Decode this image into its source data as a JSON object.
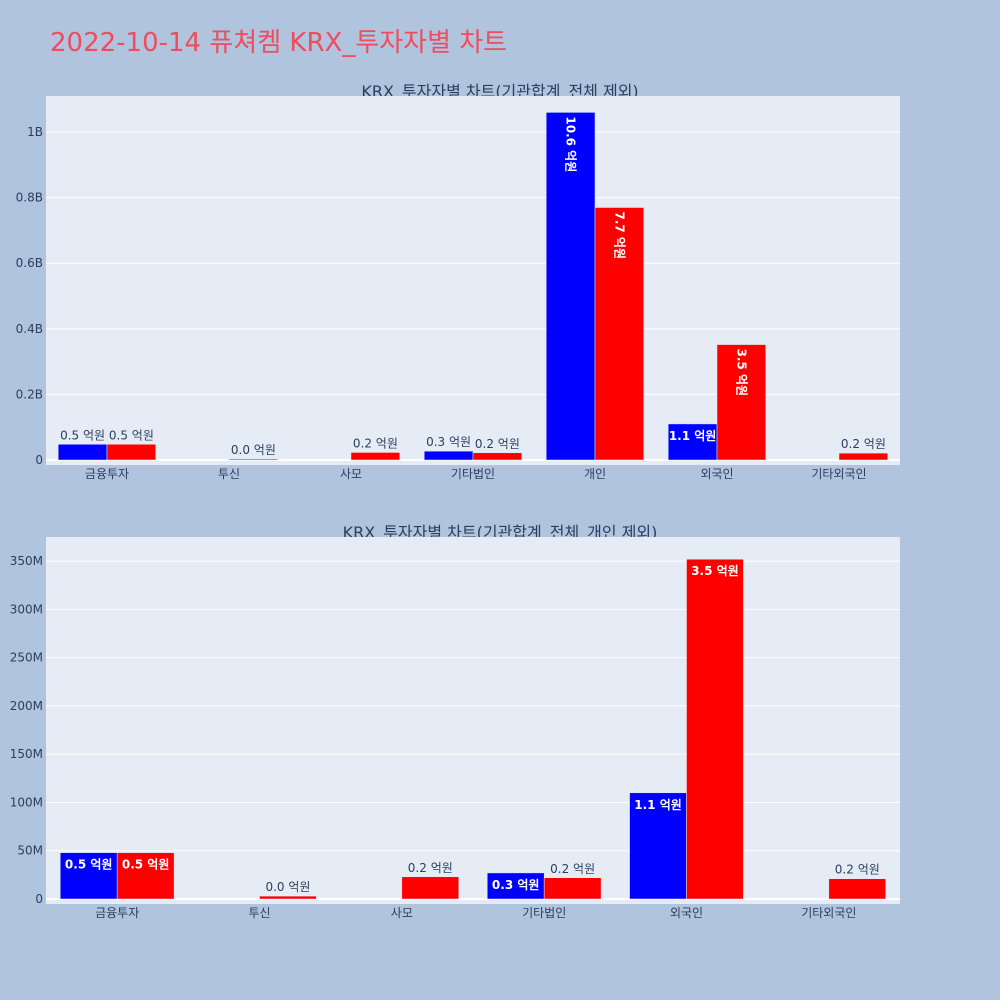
{
  "page": {
    "title": "2022-10-14 퓨쳐켐 KRX_투자자별 차트",
    "title_color": "#ef4c5e",
    "background": "#b0c4de",
    "plot_background": "#e5ecf6"
  },
  "chart_data": [
    {
      "type": "bar",
      "title": "KRX_투자자별 차트(기관합계_전체 제외)",
      "categories": [
        "금융투자",
        "투신",
        "사모",
        "기타법인",
        "개인",
        "외국인",
        "기타외국인"
      ],
      "series": [
        {
          "color": "#0000ff",
          "values": [
            48000000,
            0,
            0,
            27000000,
            1060000000,
            110000000,
            0
          ],
          "labels": [
            "0.5 억원",
            "",
            "",
            "0.3 억원",
            "10.6 억원",
            "1.1 억원",
            ""
          ]
        },
        {
          "color": "#ff0000",
          "values": [
            48000000,
            3000000,
            23000000,
            22000000,
            770000000,
            352000000,
            21000000
          ],
          "labels": [
            "0.5 억원",
            "0.0 억원",
            "0.2 억원",
            "0.2 억원",
            "7.7 억원",
            "3.5 억원",
            "0.2 억원"
          ]
        }
      ],
      "ylim": [
        0,
        1110000000
      ],
      "yticks": [
        0,
        200000000,
        400000000,
        600000000,
        800000000,
        1000000000
      ],
      "ytick_labels": [
        "0",
        "0.2B",
        "0.4B",
        "0.6B",
        "0.8B",
        "1B"
      ],
      "grid": true
    },
    {
      "type": "bar",
      "title": "KRX_투자자별 차트(기관합계_전체_개인 제외)",
      "categories": [
        "금융투자",
        "투신",
        "사모",
        "기타법인",
        "외국인",
        "기타외국인"
      ],
      "series": [
        {
          "color": "#0000ff",
          "values": [
            48000000,
            0,
            0,
            27000000,
            110000000,
            0
          ],
          "labels": [
            "0.5 억원",
            "",
            "",
            "0.3 억원",
            "1.1 억원",
            ""
          ]
        },
        {
          "color": "#ff0000",
          "values": [
            48000000,
            3000000,
            23000000,
            22000000,
            352000000,
            21000000
          ],
          "labels": [
            "0.5 억원",
            "0.0 억원",
            "0.2 억원",
            "0.2 억원",
            "3.5 억원",
            "0.2 억원"
          ]
        }
      ],
      "ylim": [
        0,
        375000000
      ],
      "yticks": [
        0,
        50000000,
        100000000,
        150000000,
        200000000,
        250000000,
        300000000,
        350000000
      ],
      "ytick_labels": [
        "0",
        "50M",
        "100M",
        "150M",
        "200M",
        "250M",
        "300M",
        "350M"
      ],
      "grid": true
    }
  ]
}
